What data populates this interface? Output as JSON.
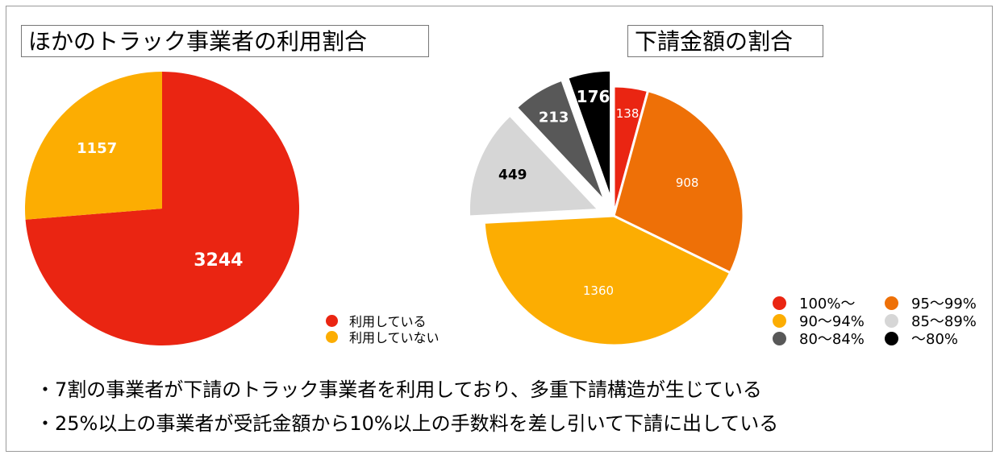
{
  "colors": {
    "red": "#ea2512",
    "orange": "#ee7007",
    "amber": "#fcad02",
    "light_gray": "#d6d6d6",
    "dark_gray": "#585858",
    "black": "#000000"
  },
  "bullets": [
    "・7割の事業者が下請のトラック事業者を利用しており、多重下請構造が生じている",
    "・25%以上の事業者が受託金額から10%以上の手数料を差し引いて下請に出している"
  ],
  "chart_data": [
    {
      "type": "pie",
      "title": "ほかのトラック事業者の利用割合",
      "slices": [
        {
          "label": "利用している",
          "value": 3244,
          "color": "#ea2512"
        },
        {
          "label": "利用していない",
          "value": 1157,
          "color": "#fcad02"
        }
      ],
      "legend": "bottom-right"
    },
    {
      "type": "pie",
      "title": "下請金額の割合",
      "slices": [
        {
          "label": "100%〜",
          "value": 138,
          "color": "#ea2512"
        },
        {
          "label": "95〜99%",
          "value": 908,
          "color": "#ee7007"
        },
        {
          "label": "90〜94%",
          "value": 1360,
          "color": "#fcad02"
        },
        {
          "label": "85〜89%",
          "value": 449,
          "color": "#d6d6d6",
          "exploded": true
        },
        {
          "label": "80〜84%",
          "value": 213,
          "color": "#585858",
          "exploded": true
        },
        {
          "label": "〜80%",
          "value": 176,
          "color": "#000000",
          "exploded": true
        }
      ],
      "legend": "bottom-right"
    }
  ]
}
